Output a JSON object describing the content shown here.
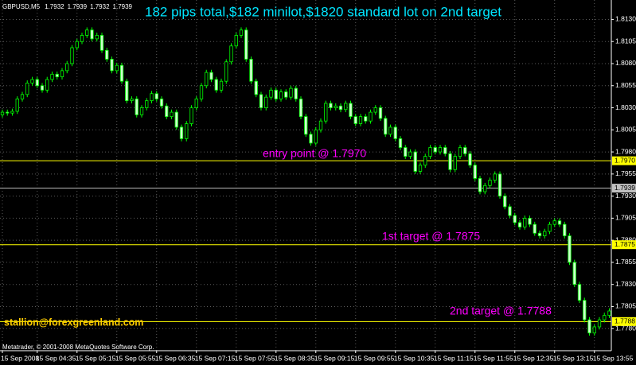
{
  "chart_data": {
    "type": "candlestick",
    "title": "182 pips total,$182 minilot,$1820 standard lot on 2nd target",
    "title_color": "#00e5ff",
    "symbol": "GBPUSD,M5",
    "header_values": [
      1.7932,
      1.7939,
      1.7932,
      1.7939
    ],
    "copyright": "Metatrader, © 2001-2008 MetaQuotes Software Corp.",
    "annotations": [
      {
        "text": "entry point @ 1.7970",
        "color": "#ff00ff"
      },
      {
        "text": "1st target @ 1.7875",
        "color": "#ff00ff"
      },
      {
        "text": "2nd target @ 1.7788",
        "color": "#ff00ff"
      },
      {
        "text": "stallion@forexgreenland.com",
        "color": "#ffcc00"
      }
    ],
    "candle_color": "#00ff00",
    "bull_fill": "#000000",
    "bear_fill": "#ccffcc",
    "grid": true,
    "grid_color": "#5a5a5a",
    "ylim": [
      1.7755,
      1.8152
    ],
    "yticks": [
      {
        "value": 1.813,
        "label": "1.8130"
      },
      1.8105,
      {
        "value": 1.808,
        "label": "1.8080"
      },
      1.8055,
      {
        "value": 1.803,
        "label": "1.8030"
      },
      1.8005,
      {
        "value": 1.798,
        "label": "1.7980"
      },
      1.7955,
      {
        "value": 1.793,
        "label": "1.7930"
      },
      1.7905,
      {
        "value": 1.788,
        "label": "1.7880"
      },
      1.7855,
      {
        "value": 1.783,
        "label": "1.7830"
      },
      1.7805,
      {
        "value": 1.778,
        "label": "1.7780"
      }
    ],
    "levels": [
      {
        "value": 1.797,
        "label": "1.7970",
        "color": "#ffff00"
      },
      {
        "value": 1.7939,
        "label": "1.7939",
        "color": "#c0c0c0"
      },
      {
        "value": 1.7875,
        "label": "1.7875",
        "color": "#ffff00"
      },
      {
        "value": 1.7788,
        "label": "1.7788",
        "color": "#ffff00"
      }
    ],
    "categories": [
      "15 Sep 2008",
      null,
      null,
      null,
      null,
      null,
      null,
      "15 Sep 04:35",
      null,
      null,
      null,
      null,
      null,
      null,
      null,
      "15 Sep 05:15",
      null,
      null,
      null,
      null,
      null,
      null,
      null,
      "15 Sep 05:55",
      null,
      null,
      null,
      null,
      null,
      null,
      null,
      "15 Sep 06:35",
      null,
      null,
      null,
      null,
      null,
      null,
      null,
      "15 Sep 07:15",
      null,
      null,
      null,
      null,
      null,
      null,
      null,
      "15 Sep 07:55",
      null,
      null,
      null,
      null,
      null,
      null,
      null,
      "15 Sep 08:35",
      null,
      null,
      null,
      null,
      null,
      null,
      null,
      "15 Sep 09:15",
      null,
      null,
      null,
      null,
      null,
      null,
      null,
      "15 Sep 09:55",
      null,
      null,
      null,
      null,
      null,
      null,
      null,
      "15 Sep 10:35",
      null,
      null,
      null,
      null,
      null,
      null,
      null,
      "15 Sep 11:15",
      null,
      null,
      null,
      null,
      null,
      null,
      null,
      "15 Sep 11:55",
      null,
      null,
      null,
      null,
      null,
      null,
      null,
      "15 Sep 12:35",
      null,
      null,
      null,
      null,
      null,
      null,
      null,
      "15 Sep 13:15",
      null,
      null,
      null,
      null,
      null,
      null,
      null,
      "15 Sep 13:55",
      null,
      null,
      null
    ],
    "ohlc": [
      [
        1.8022,
        1.8028,
        1.8019,
        1.8025
      ],
      [
        1.8025,
        1.8028,
        1.8021,
        1.8024
      ],
      [
        1.8024,
        1.8029,
        1.8021,
        1.8026
      ],
      [
        1.8026,
        1.8043,
        1.8023,
        1.804
      ],
      [
        1.804,
        1.8048,
        1.8037,
        1.8045
      ],
      [
        1.8045,
        1.8061,
        1.8042,
        1.8058
      ],
      [
        1.8058,
        1.8065,
        1.8055,
        1.8062
      ],
      [
        1.8062,
        1.8065,
        1.8052,
        1.8055
      ],
      [
        1.8055,
        1.8058,
        1.8047,
        1.805
      ],
      [
        1.805,
        1.8065,
        1.8047,
        1.8062
      ],
      [
        1.8062,
        1.8071,
        1.8059,
        1.8068
      ],
      [
        1.8068,
        1.8071,
        1.8062,
        1.8065
      ],
      [
        1.8065,
        1.8075,
        1.8062,
        1.8072
      ],
      [
        1.8072,
        1.8083,
        1.8069,
        1.808
      ],
      [
        1.808,
        1.8101,
        1.8077,
        1.8098
      ],
      [
        1.8098,
        1.8108,
        1.8095,
        1.8105
      ],
      [
        1.8105,
        1.8115,
        1.8102,
        1.8112
      ],
      [
        1.8112,
        1.8121,
        1.8109,
        1.8118
      ],
      [
        1.8118,
        1.8121,
        1.8105,
        1.8108
      ],
      [
        1.8108,
        1.8115,
        1.8105,
        1.8112
      ],
      [
        1.8112,
        1.8115,
        1.8092,
        1.8095
      ],
      [
        1.8095,
        1.8098,
        1.8082,
        1.8085
      ],
      [
        1.8085,
        1.8088,
        1.8069,
        1.8072
      ],
      [
        1.8072,
        1.8081,
        1.8069,
        1.8078
      ],
      [
        1.8078,
        1.8081,
        1.8057,
        1.806
      ],
      [
        1.806,
        1.8063,
        1.8035,
        1.8038
      ],
      [
        1.8038,
        1.8043,
        1.8035,
        1.804
      ],
      [
        1.804,
        1.8043,
        1.8019,
        1.8022
      ],
      [
        1.8022,
        1.8033,
        1.8019,
        1.803
      ],
      [
        1.803,
        1.8041,
        1.8027,
        1.8038
      ],
      [
        1.8038,
        1.8049,
        1.8035,
        1.8046
      ],
      [
        1.8046,
        1.8049,
        1.8037,
        1.804
      ],
      [
        1.804,
        1.8043,
        1.8029,
        1.8032
      ],
      [
        1.8032,
        1.8035,
        1.8017,
        1.802
      ],
      [
        1.802,
        1.8028,
        1.8017,
        1.8025
      ],
      [
        1.8025,
        1.8028,
        1.8005,
        1.8008
      ],
      [
        1.8008,
        1.8011,
        1.7992,
        1.7995
      ],
      [
        1.7995,
        1.8015,
        1.7992,
        1.8012
      ],
      [
        1.8012,
        1.8033,
        1.8009,
        1.803
      ],
      [
        1.803,
        1.8043,
        1.8027,
        1.804
      ],
      [
        1.804,
        1.8058,
        1.8037,
        1.8055
      ],
      [
        1.8055,
        1.8073,
        1.8052,
        1.807
      ],
      [
        1.807,
        1.8073,
        1.8059,
        1.8062
      ],
      [
        1.8062,
        1.8065,
        1.8047,
        1.805
      ],
      [
        1.805,
        1.8063,
        1.8047,
        1.806
      ],
      [
        1.806,
        1.8085,
        1.8057,
        1.8082
      ],
      [
        1.8082,
        1.8103,
        1.8079,
        1.81
      ],
      [
        1.81,
        1.8115,
        1.8097,
        1.8112
      ],
      [
        1.8112,
        1.8121,
        1.8109,
        1.8118
      ],
      [
        1.8118,
        1.8121,
        1.8082,
        1.8085
      ],
      [
        1.8085,
        1.8088,
        1.8057,
        1.806
      ],
      [
        1.806,
        1.8063,
        1.8042,
        1.8045
      ],
      [
        1.8045,
        1.8048,
        1.8027,
        1.803
      ],
      [
        1.803,
        1.8045,
        1.8027,
        1.8042
      ],
      [
        1.8042,
        1.8053,
        1.8039,
        1.805
      ],
      [
        1.805,
        1.8053,
        1.8037,
        1.804
      ],
      [
        1.804,
        1.8051,
        1.8037,
        1.8048
      ],
      [
        1.8048,
        1.8051,
        1.8039,
        1.8042
      ],
      [
        1.8042,
        1.8055,
        1.8039,
        1.8052
      ],
      [
        1.8052,
        1.8055,
        1.8037,
        1.804
      ],
      [
        1.804,
        1.8043,
        1.8017,
        1.802
      ],
      [
        1.802,
        1.8023,
        1.7997,
        1.8
      ],
      [
        1.8,
        1.8003,
        1.7987,
        1.799
      ],
      [
        1.799,
        1.8008,
        1.7987,
        1.8005
      ],
      [
        1.8005,
        1.8018,
        1.8002,
        1.8015
      ],
      [
        1.8015,
        1.8038,
        1.8012,
        1.8035
      ],
      [
        1.8035,
        1.8038,
        1.8027,
        1.803
      ],
      [
        1.803,
        1.8035,
        1.8027,
        1.8032
      ],
      [
        1.8032,
        1.8035,
        1.8025,
        1.8028
      ],
      [
        1.8028,
        1.8038,
        1.8025,
        1.8035
      ],
      [
        1.8035,
        1.8038,
        1.8017,
        1.802
      ],
      [
        1.802,
        1.8023,
        1.8009,
        1.8012
      ],
      [
        1.8012,
        1.8023,
        1.8009,
        1.802
      ],
      [
        1.802,
        1.8023,
        1.8012,
        1.8015
      ],
      [
        1.8015,
        1.8028,
        1.8012,
        1.8025
      ],
      [
        1.8025,
        1.8033,
        1.8022,
        1.803
      ],
      [
        1.803,
        1.8033,
        1.8015,
        1.8018
      ],
      [
        1.8018,
        1.8021,
        1.7997,
        1.8
      ],
      [
        1.8,
        1.8011,
        1.7997,
        1.8008
      ],
      [
        1.8008,
        1.8011,
        1.7992,
        1.7995
      ],
      [
        1.7995,
        1.7998,
        1.7982,
        1.7985
      ],
      [
        1.7985,
        1.7988,
        1.7972,
        1.7975
      ],
      [
        1.7975,
        1.7983,
        1.7972,
        1.798
      ],
      [
        1.798,
        1.7983,
        1.7955,
        1.7958
      ],
      [
        1.7958,
        1.7968,
        1.7955,
        1.7965
      ],
      [
        1.7965,
        1.7978,
        1.7962,
        1.7975
      ],
      [
        1.7975,
        1.7988,
        1.7972,
        1.7985
      ],
      [
        1.7985,
        1.7988,
        1.7977,
        1.798
      ],
      [
        1.798,
        1.7988,
        1.7977,
        1.7985
      ],
      [
        1.7985,
        1.7988,
        1.7975,
        1.7978
      ],
      [
        1.7978,
        1.7981,
        1.7957,
        1.796
      ],
      [
        1.796,
        1.7978,
        1.7957,
        1.7975
      ],
      [
        1.7975,
        1.7988,
        1.7972,
        1.7985
      ],
      [
        1.7985,
        1.7988,
        1.7975,
        1.7978
      ],
      [
        1.7978,
        1.7981,
        1.7962,
        1.7965
      ],
      [
        1.7965,
        1.7968,
        1.7947,
        1.795
      ],
      [
        1.795,
        1.7953,
        1.7932,
        1.7935
      ],
      [
        1.7935,
        1.7945,
        1.7932,
        1.7942
      ],
      [
        1.7942,
        1.7951,
        1.7939,
        1.7948
      ],
      [
        1.7948,
        1.7958,
        1.7945,
        1.7955
      ],
      [
        1.7955,
        1.7958,
        1.7927,
        1.793
      ],
      [
        1.793,
        1.7933,
        1.7915,
        1.7918
      ],
      [
        1.7918,
        1.7921,
        1.7905,
        1.7908
      ],
      [
        1.7908,
        1.7911,
        1.7897,
        1.79
      ],
      [
        1.79,
        1.7903,
        1.7892,
        1.7895
      ],
      [
        1.7895,
        1.7908,
        1.7892,
        1.7905
      ],
      [
        1.7905,
        1.7908,
        1.7895,
        1.7898
      ],
      [
        1.7898,
        1.7901,
        1.7885,
        1.7888
      ],
      [
        1.7888,
        1.7891,
        1.7882,
        1.7885
      ],
      [
        1.7885,
        1.7893,
        1.7882,
        1.789
      ],
      [
        1.789,
        1.7901,
        1.7887,
        1.7898
      ],
      [
        1.7898,
        1.7905,
        1.7895,
        1.7902
      ],
      [
        1.7902,
        1.7905,
        1.7895,
        1.7898
      ],
      [
        1.7898,
        1.7901,
        1.7882,
        1.7885
      ],
      [
        1.7885,
        1.7888,
        1.7852,
        1.7855
      ],
      [
        1.7855,
        1.7858,
        1.7827,
        1.783
      ],
      [
        1.783,
        1.7833,
        1.7809,
        1.7812
      ],
      [
        1.7812,
        1.7815,
        1.7787,
        1.779
      ],
      [
        1.779,
        1.7793,
        1.7772,
        1.7775
      ],
      [
        1.7775,
        1.7785,
        1.7772,
        1.7782
      ],
      [
        1.7782,
        1.7793,
        1.7779,
        1.779
      ],
      [
        1.779,
        1.7798,
        1.7787,
        1.7795
      ],
      [
        1.7795,
        1.7803,
        1.7792,
        1.78
      ]
    ]
  }
}
